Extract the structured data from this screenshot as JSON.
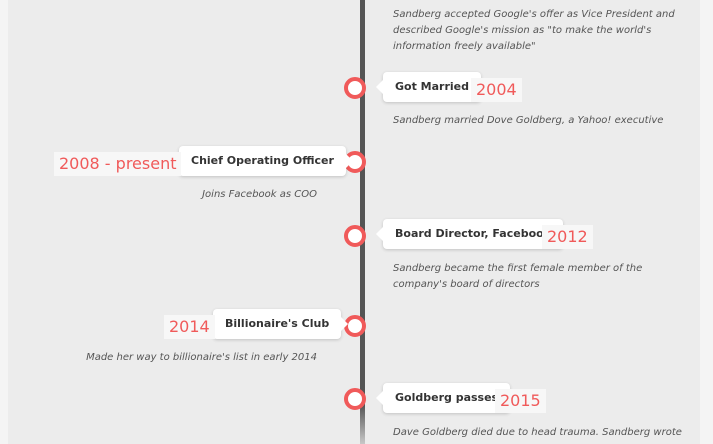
{
  "colors": {
    "accent": "#f05a5a",
    "line": "#555555",
    "background": "#ececec"
  },
  "events": [
    {
      "title": "",
      "year": "",
      "description": "Sandberg accepted Google's offer as Vice President and described Google's mission as \"to make the world's information freely available\""
    },
    {
      "title": "Got Married",
      "year": "2004",
      "description": "Sandberg married Dove Goldberg, a Yahoo! executive"
    },
    {
      "title": "Chief Operating Officer",
      "year": "2008 - present",
      "description": "Joins Facebook as COO"
    },
    {
      "title": "Board Director, Facebook",
      "year": "2012",
      "description": "Sandberg became the first female member of the company's board of directors"
    },
    {
      "title": "Billionaire's Club",
      "year": "2014",
      "description": "Made her way to billionaire's list in early 2014"
    },
    {
      "title": "Goldberg passes",
      "year": "2015",
      "description": "Dave Goldberg died due to head trauma. Sandberg wrote"
    }
  ]
}
